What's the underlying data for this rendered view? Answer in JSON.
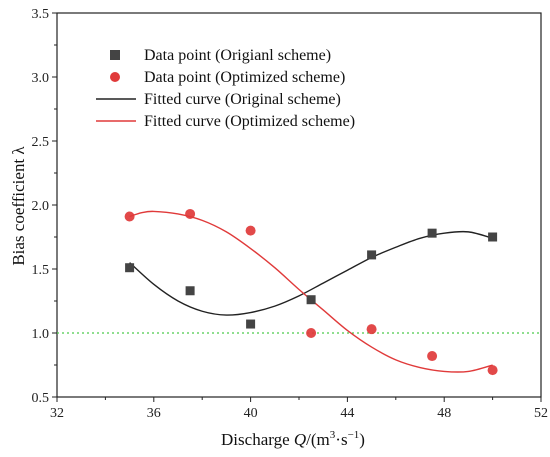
{
  "chart_data": {
    "type": "scatter",
    "xlabel": "Discharge Q/(m³·s⁻¹)",
    "xlabel_parts": {
      "prefix": "Discharge ",
      "var": "Q",
      "unit_open": "/(m",
      "exp1": "3",
      "mid": "·s",
      "exp2": "−1",
      "unit_close": ")"
    },
    "ylabel": "Bias coefficient λ",
    "xlim": [
      32,
      52
    ],
    "ylim": [
      0.5,
      3.5
    ],
    "x_ticks": [
      32,
      36,
      40,
      44,
      48,
      52
    ],
    "y_ticks": [
      0.5,
      1.0,
      1.5,
      2.0,
      2.5,
      3.0,
      3.5
    ],
    "x_tick_labels": [
      "32",
      "36",
      "40",
      "44",
      "48",
      "52"
    ],
    "y_tick_labels": [
      "0.5",
      "1.0",
      "1.5",
      "2.0",
      "2.5",
      "3.0",
      "3.5"
    ],
    "reference_line": {
      "y": 1.0,
      "color": "#4cc94c",
      "style": "dotted"
    },
    "legend_position": "top-left",
    "series": [
      {
        "name": "Data point (Origianl scheme)",
        "kind": "points",
        "marker": "square",
        "color": "#444444",
        "x": [
          35,
          37.5,
          40,
          42.5,
          45,
          47.5,
          50
        ],
        "y": [
          1.51,
          1.33,
          1.07,
          1.26,
          1.61,
          1.78,
          1.75
        ]
      },
      {
        "name": "Data point (Optimized scheme)",
        "kind": "points",
        "marker": "circle",
        "color": "#e03a3a",
        "x": [
          35,
          37.5,
          40,
          42.5,
          45,
          47.5,
          50
        ],
        "y": [
          1.91,
          1.93,
          1.8,
          1.0,
          1.03,
          0.82,
          0.71
        ]
      },
      {
        "name": "Fitted curve (Original scheme)",
        "kind": "curve",
        "color": "#222222",
        "x": [
          35,
          36,
          37,
          38,
          39,
          40,
          41,
          42,
          43,
          44,
          45,
          46,
          47,
          48,
          49,
          50
        ],
        "y": [
          1.55,
          1.38,
          1.25,
          1.17,
          1.14,
          1.16,
          1.21,
          1.29,
          1.39,
          1.49,
          1.59,
          1.67,
          1.74,
          1.78,
          1.79,
          1.74
        ]
      },
      {
        "name": "Fitted curve (Optimized scheme)",
        "kind": "curve",
        "color": "#e03a3a",
        "x": [
          35,
          35.5,
          36,
          37,
          38,
          39,
          40,
          41,
          42,
          43,
          44,
          45,
          46,
          47,
          48,
          49,
          50
        ],
        "y": [
          1.91,
          1.94,
          1.95,
          1.93,
          1.88,
          1.79,
          1.66,
          1.51,
          1.34,
          1.18,
          1.02,
          0.89,
          0.79,
          0.73,
          0.7,
          0.7,
          0.75
        ]
      }
    ]
  }
}
